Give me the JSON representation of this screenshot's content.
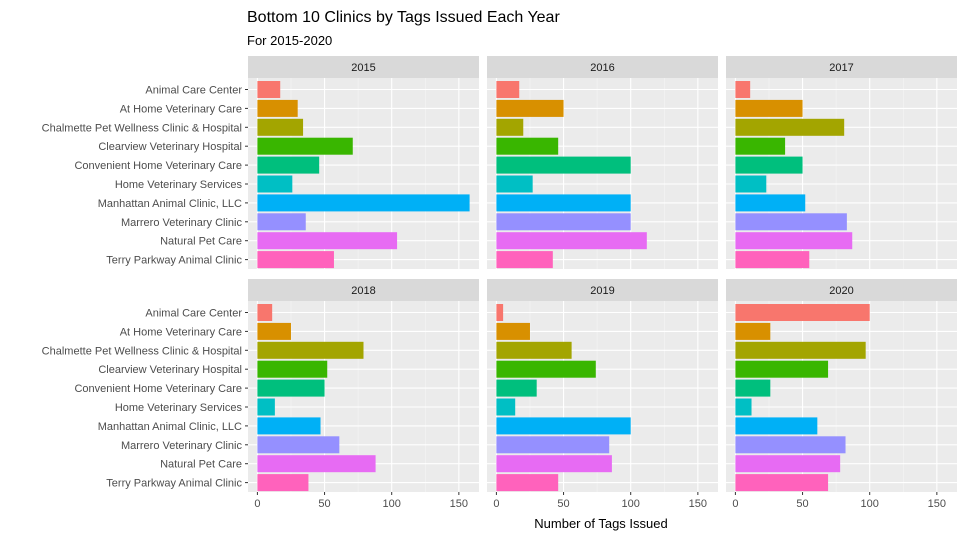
{
  "chart_data": {
    "type": "bar",
    "orientation": "horizontal",
    "faceted": true,
    "title": "Bottom 10 Clinics by Tags Issued Each Year",
    "subtitle": "For 2015-2020",
    "xlabel": "Number of Tags Issued",
    "ylabel": "",
    "xlim": [
      0,
      160
    ],
    "xticks": [
      0,
      50,
      100,
      150
    ],
    "grid": true,
    "legend": "none",
    "categories": [
      "Animal Care Center",
      "At Home Veterinary Care",
      "Chalmette Pet Wellness Clinic & Hospital",
      "Clearview Veterinary Hospital",
      "Convenient Home Veterinary Care",
      "Home Veterinary Services",
      "Manhattan Animal Clinic, LLC",
      "Marrero Veterinary Clinic",
      "Natural Pet Care",
      "Terry Parkway Animal Clinic"
    ],
    "colors": [
      "#F8766D",
      "#D89000",
      "#A3A500",
      "#39B600",
      "#00BF7D",
      "#00BFC4",
      "#00B0F6",
      "#9590FF",
      "#E76BF3",
      "#FF62BC"
    ],
    "panels": [
      {
        "year": "2015",
        "values": [
          17,
          30,
          34,
          71,
          46,
          26,
          158,
          36,
          104,
          57
        ]
      },
      {
        "year": "2016",
        "values": [
          17,
          50,
          20,
          46,
          100,
          27,
          100,
          100,
          112,
          42
        ]
      },
      {
        "year": "2017",
        "values": [
          11,
          50,
          81,
          37,
          50,
          23,
          52,
          83,
          87,
          55
        ]
      },
      {
        "year": "2018",
        "values": [
          11,
          25,
          79,
          52,
          50,
          13,
          47,
          61,
          88,
          38
        ]
      },
      {
        "year": "2019",
        "values": [
          5,
          25,
          56,
          74,
          30,
          14,
          100,
          84,
          86,
          46
        ]
      },
      {
        "year": "2020",
        "values": [
          100,
          26,
          97,
          69,
          26,
          12,
          61,
          82,
          78,
          69
        ]
      }
    ]
  }
}
